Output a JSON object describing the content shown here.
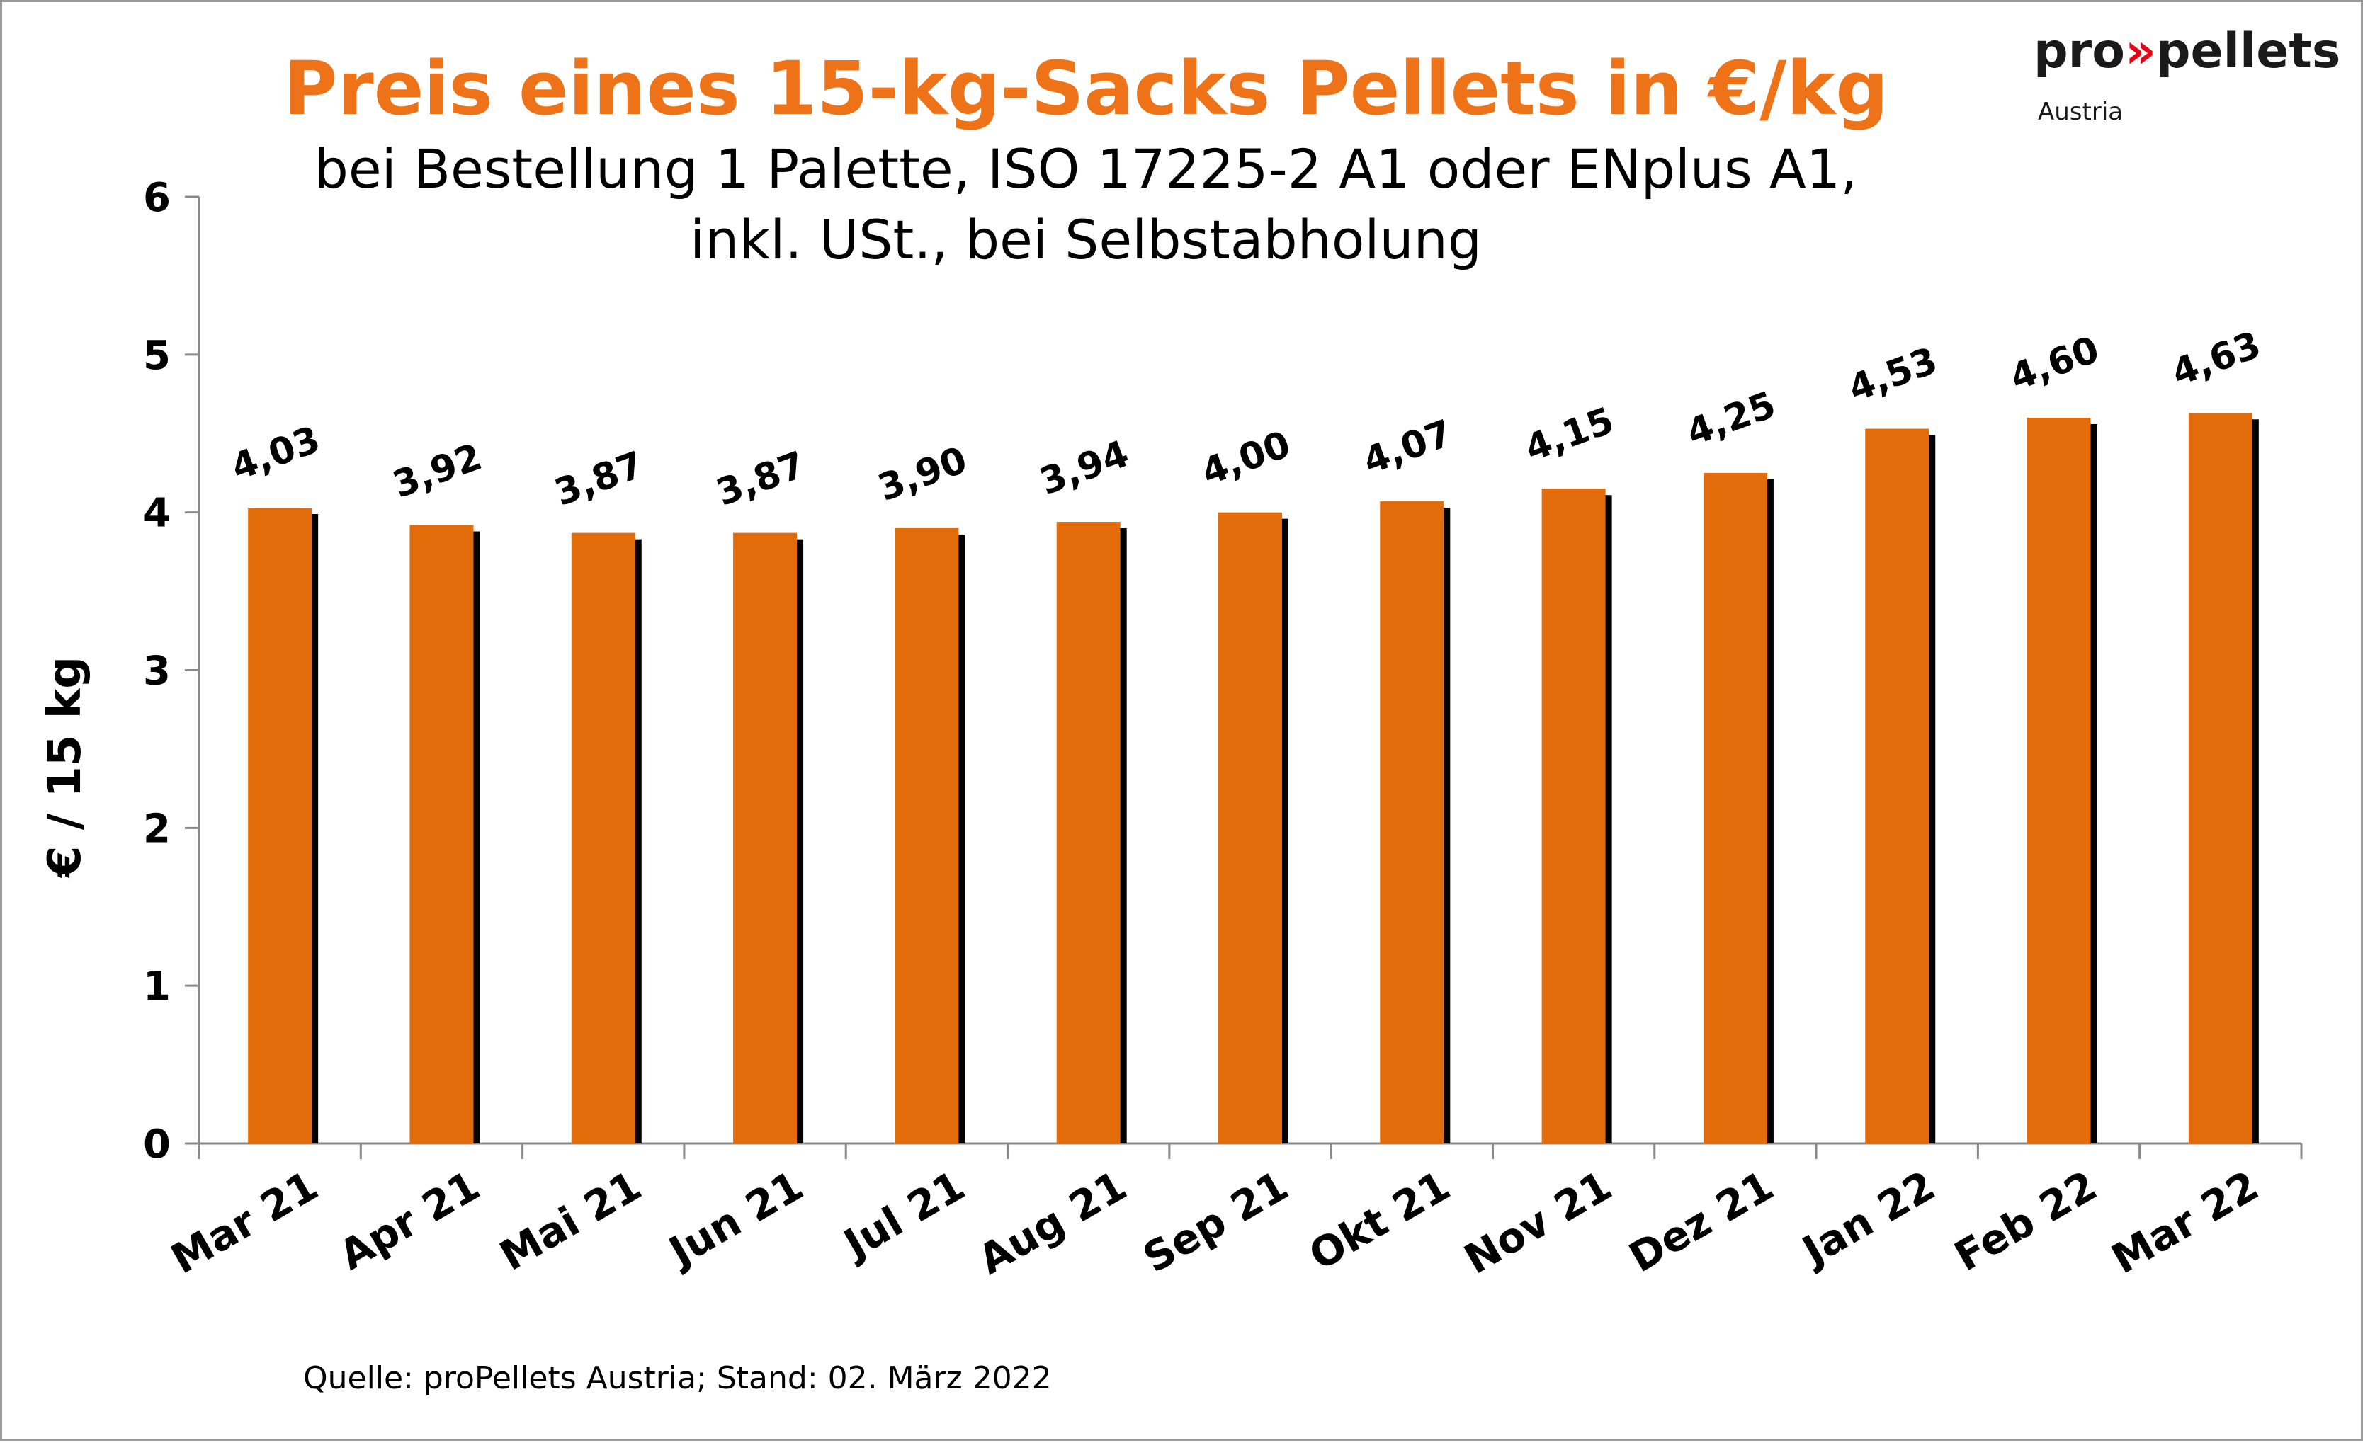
{
  "chart_data": {
    "type": "bar",
    "title": "Preis eines 15-kg-Sacks Pellets in €/kg",
    "subtitle_line1": "bei Bestellung 1 Palette, ISO 17225-2 A1 oder ENplus A1,",
    "subtitle_line2": "inkl. USt., bei Selbstabholung",
    "ylabel": "€ / 15 kg",
    "xlabel": "",
    "ylim": [
      0,
      6
    ],
    "yticks": [
      "0",
      "1",
      "2",
      "3",
      "4",
      "5",
      "6"
    ],
    "categories": [
      "Mar 21",
      "Apr 21",
      "Mai 21",
      "Jun 21",
      "Jul 21",
      "Aug 21",
      "Sep 21",
      "Okt 21",
      "Nov 21",
      "Dez 21",
      "Jan 22",
      "Feb 22",
      "Mar 22"
    ],
    "values": [
      4.03,
      3.92,
      3.87,
      3.87,
      3.9,
      3.94,
      4.0,
      4.07,
      4.15,
      4.25,
      4.53,
      4.6,
      4.63
    ],
    "value_labels": [
      "4,03",
      "3,92",
      "3,87",
      "3,87",
      "3,90",
      "3,94",
      "4,00",
      "4,07",
      "4,15",
      "4,25",
      "4,53",
      "4,60",
      "4,63"
    ],
    "grid": false,
    "legend": "none",
    "bar_color": "#e36c0a",
    "shadow_color": "#000000",
    "source": "Quelle: proPellets Austria; Stand: 02. März 2022"
  },
  "logo": {
    "pro": "pro",
    "arrows": "»",
    "pellets": "pellets",
    "sub": "Austria"
  }
}
